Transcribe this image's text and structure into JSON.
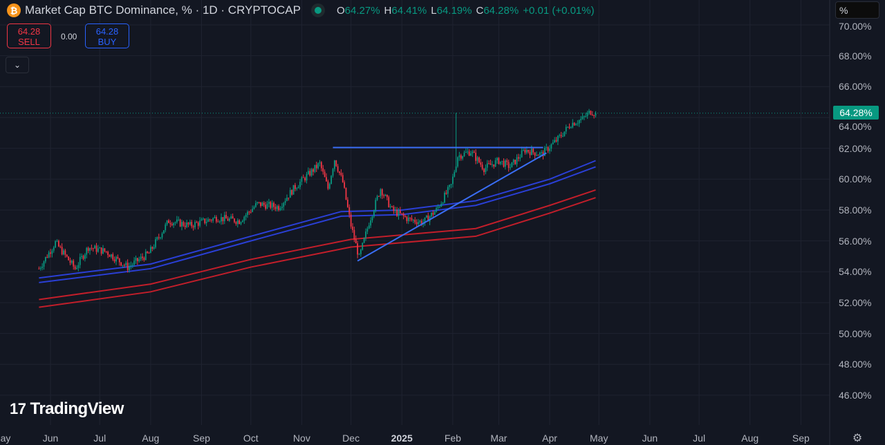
{
  "header": {
    "title": "Market Cap BTC Dominance, % · 1D · CRYPTOCAP",
    "icon": "bitcoin-icon",
    "status": "market-open-dot",
    "ohlc": [
      {
        "k": "O",
        "v": "64.27%"
      },
      {
        "k": "H",
        "v": "64.41%"
      },
      {
        "k": "L",
        "v": "64.19%"
      },
      {
        "k": "C",
        "v": "64.28%"
      }
    ],
    "change": "+0.01 (+0.01%)"
  },
  "trade": {
    "sell_price": "64.28",
    "sell_label": "SELL",
    "spread": "0.00",
    "buy_price": "64.28",
    "buy_label": "BUY",
    "collapse_icon": "chevron-down-icon"
  },
  "scale_mode": "%",
  "last_price_label": "64.28%",
  "logo": "TradingView",
  "settings_icon": "gear-icon",
  "colors": {
    "background": "#131722",
    "up": "#089981",
    "down": "#f23645",
    "ma_blue": "#2a3fd6",
    "ma_red": "#c21e2a",
    "trendline": "#3a6ef5"
  },
  "chart_data": {
    "type": "candlestick",
    "title": "Market Cap BTC Dominance, %",
    "interval": "1D",
    "y_ticks": [
      "70.00%",
      "68.00%",
      "66.00%",
      "64.00%",
      "62.00%",
      "60.00%",
      "58.00%",
      "56.00%",
      "54.00%",
      "52.00%",
      "50.00%",
      "48.00%",
      "46.00%"
    ],
    "ylim": [
      45,
      70.5
    ],
    "x_ticks": [
      {
        "label": "ay",
        "date": "2024-05-01"
      },
      {
        "label": "Jun",
        "date": "2024-06-01"
      },
      {
        "label": "Jul",
        "date": "2024-07-01"
      },
      {
        "label": "Aug",
        "date": "2024-08-01"
      },
      {
        "label": "Sep",
        "date": "2024-09-01"
      },
      {
        "label": "Oct",
        "date": "2024-10-01"
      },
      {
        "label": "Nov",
        "date": "2024-11-01"
      },
      {
        "label": "Dec",
        "date": "2024-12-01"
      },
      {
        "label": "2025",
        "date": "2025-01-01"
      },
      {
        "label": "Feb",
        "date": "2025-02-01"
      },
      {
        "label": "Mar",
        "date": "2025-03-01"
      },
      {
        "label": "Apr",
        "date": "2025-04-01"
      },
      {
        "label": "May",
        "date": "2025-05-01"
      },
      {
        "label": "Jun",
        "date": "2025-06-01"
      },
      {
        "label": "Jul",
        "date": "2025-07-01"
      },
      {
        "label": "Aug",
        "date": "2025-08-01"
      },
      {
        "label": "Sep",
        "date": "2025-09-01"
      }
    ],
    "grid": true,
    "close_approx": [
      [
        "2024-05-25",
        54.2
      ],
      [
        "2024-06-04",
        55.9
      ],
      [
        "2024-06-16",
        54.2
      ],
      [
        "2024-06-24",
        55.6
      ],
      [
        "2024-07-05",
        55.3
      ],
      [
        "2024-07-18",
        54.3
      ],
      [
        "2024-07-31",
        55.2
      ],
      [
        "2024-08-12",
        57.3
      ],
      [
        "2024-08-25",
        57.0
      ],
      [
        "2024-09-10",
        57.5
      ],
      [
        "2024-09-24",
        57.3
      ],
      [
        "2024-10-05",
        58.4
      ],
      [
        "2024-10-18",
        58.2
      ],
      [
        "2024-10-28",
        59.5
      ],
      [
        "2024-11-05",
        60.3
      ],
      [
        "2024-11-12",
        61.0
      ],
      [
        "2024-11-17",
        59.4
      ],
      [
        "2024-11-21",
        61.3
      ],
      [
        "2024-11-26",
        59.8
      ],
      [
        "2024-12-01",
        57.0
      ],
      [
        "2024-12-06",
        54.9
      ],
      [
        "2024-12-12",
        57.2
      ],
      [
        "2024-12-19",
        59.4
      ],
      [
        "2024-12-26",
        58.0
      ],
      [
        "2025-01-05",
        57.4
      ],
      [
        "2025-01-14",
        57.2
      ],
      [
        "2025-01-22",
        58.0
      ],
      [
        "2025-01-31",
        59.6
      ],
      [
        "2025-02-04",
        61.5
      ],
      [
        "2025-02-12",
        61.8
      ],
      [
        "2025-02-20",
        60.7
      ],
      [
        "2025-03-01",
        61.2
      ],
      [
        "2025-03-08",
        60.8
      ],
      [
        "2025-03-17",
        61.9
      ],
      [
        "2025-03-27",
        61.6
      ],
      [
        "2025-04-06",
        62.6
      ],
      [
        "2025-04-14",
        63.6
      ],
      [
        "2025-04-21",
        63.9
      ],
      [
        "2025-04-26",
        64.4
      ],
      [
        "2025-04-29",
        64.28
      ]
    ],
    "spike_high": {
      "date": "2025-02-03",
      "value": 64.3
    },
    "moving_averages": [
      {
        "color": "#2a3fd6",
        "points": [
          [
            "2024-05-25",
            53.6
          ],
          [
            "2024-08-01",
            54.5
          ],
          [
            "2024-10-01",
            56.3
          ],
          [
            "2024-11-25",
            57.9
          ],
          [
            "2025-01-01",
            58.0
          ],
          [
            "2025-02-15",
            58.6
          ],
          [
            "2025-04-01",
            60.0
          ],
          [
            "2025-04-29",
            61.2
          ]
        ]
      },
      {
        "color": "#2a3fd6",
        "points": [
          [
            "2024-05-25",
            53.3
          ],
          [
            "2024-08-01",
            54.2
          ],
          [
            "2024-10-01",
            56.0
          ],
          [
            "2024-11-25",
            57.6
          ],
          [
            "2025-01-01",
            57.7
          ],
          [
            "2025-02-15",
            58.3
          ],
          [
            "2025-04-01",
            59.7
          ],
          [
            "2025-04-29",
            60.8
          ]
        ]
      },
      {
        "color": "#c21e2a",
        "points": [
          [
            "2024-05-25",
            52.2
          ],
          [
            "2024-08-01",
            53.2
          ],
          [
            "2024-10-01",
            54.8
          ],
          [
            "2024-12-01",
            56.1
          ],
          [
            "2025-02-15",
            56.8
          ],
          [
            "2025-04-01",
            58.3
          ],
          [
            "2025-04-29",
            59.3
          ]
        ]
      },
      {
        "color": "#c21e2a",
        "points": [
          [
            "2024-05-25",
            51.7
          ],
          [
            "2024-08-01",
            52.7
          ],
          [
            "2024-10-01",
            54.3
          ],
          [
            "2024-12-01",
            55.6
          ],
          [
            "2025-02-15",
            56.3
          ],
          [
            "2025-04-01",
            57.8
          ],
          [
            "2025-04-29",
            58.8
          ]
        ]
      }
    ],
    "trendlines": [
      {
        "from": [
          "2024-11-20",
          62.05
        ],
        "to": [
          "2025-03-28",
          62.05
        ]
      },
      {
        "from": [
          "2024-12-05",
          54.7
        ],
        "to": [
          "2025-03-30",
          61.7
        ]
      }
    ],
    "last_price": 64.28
  }
}
